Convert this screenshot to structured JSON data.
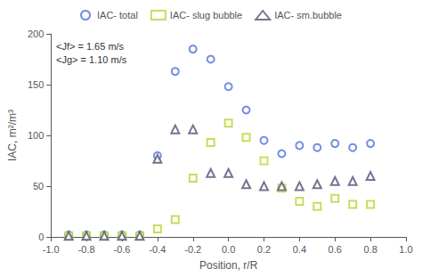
{
  "chart_data": {
    "type": "scatter",
    "xlabel": "Position, r/R",
    "ylabel": "IAC, m²/m³",
    "annotation": "<Jf> = 1.65 m/s\n<Jg> = 1.10 m/s",
    "x": [
      -0.9,
      -0.8,
      -0.7,
      -0.6,
      -0.5,
      -0.4,
      -0.3,
      -0.2,
      -0.1,
      0.0,
      0.1,
      0.2,
      0.3,
      0.4,
      0.5,
      0.6,
      0.7,
      0.8
    ],
    "series": [
      {
        "name": "IAC- total",
        "marker": "circle",
        "values": [
          2,
          2,
          2,
          2,
          2,
          80,
          163,
          185,
          175,
          148,
          125,
          95,
          82,
          90,
          88,
          92,
          88,
          92
        ]
      },
      {
        "name": "IAC- slug bubble",
        "marker": "square",
        "values": [
          1,
          1,
          1,
          1,
          1,
          8,
          17,
          58,
          93,
          112,
          98,
          75,
          48,
          35,
          30,
          38,
          32,
          32
        ]
      },
      {
        "name": "IAC- sm.bubble",
        "marker": "triangle",
        "values": [
          1,
          1,
          1,
          1,
          1,
          77,
          106,
          106,
          63,
          63,
          52,
          50,
          50,
          50,
          52,
          55,
          55,
          60
        ]
      }
    ],
    "xlim": [
      -1.0,
      1.0
    ],
    "xticks": [
      {
        "value": -1.0,
        "label": "-1.0"
      },
      -0.8,
      -0.6,
      -0.4,
      -0.2,
      {
        "value": 0.0,
        "label": "0.0"
      },
      0.2,
      0.4,
      0.6,
      0.8,
      {
        "value": 1.0,
        "label": "1.0"
      }
    ],
    "ylim": [
      0,
      200
    ],
    "yticks": [
      0,
      50,
      100,
      150,
      200
    ],
    "grid": false,
    "legend": "top"
  }
}
